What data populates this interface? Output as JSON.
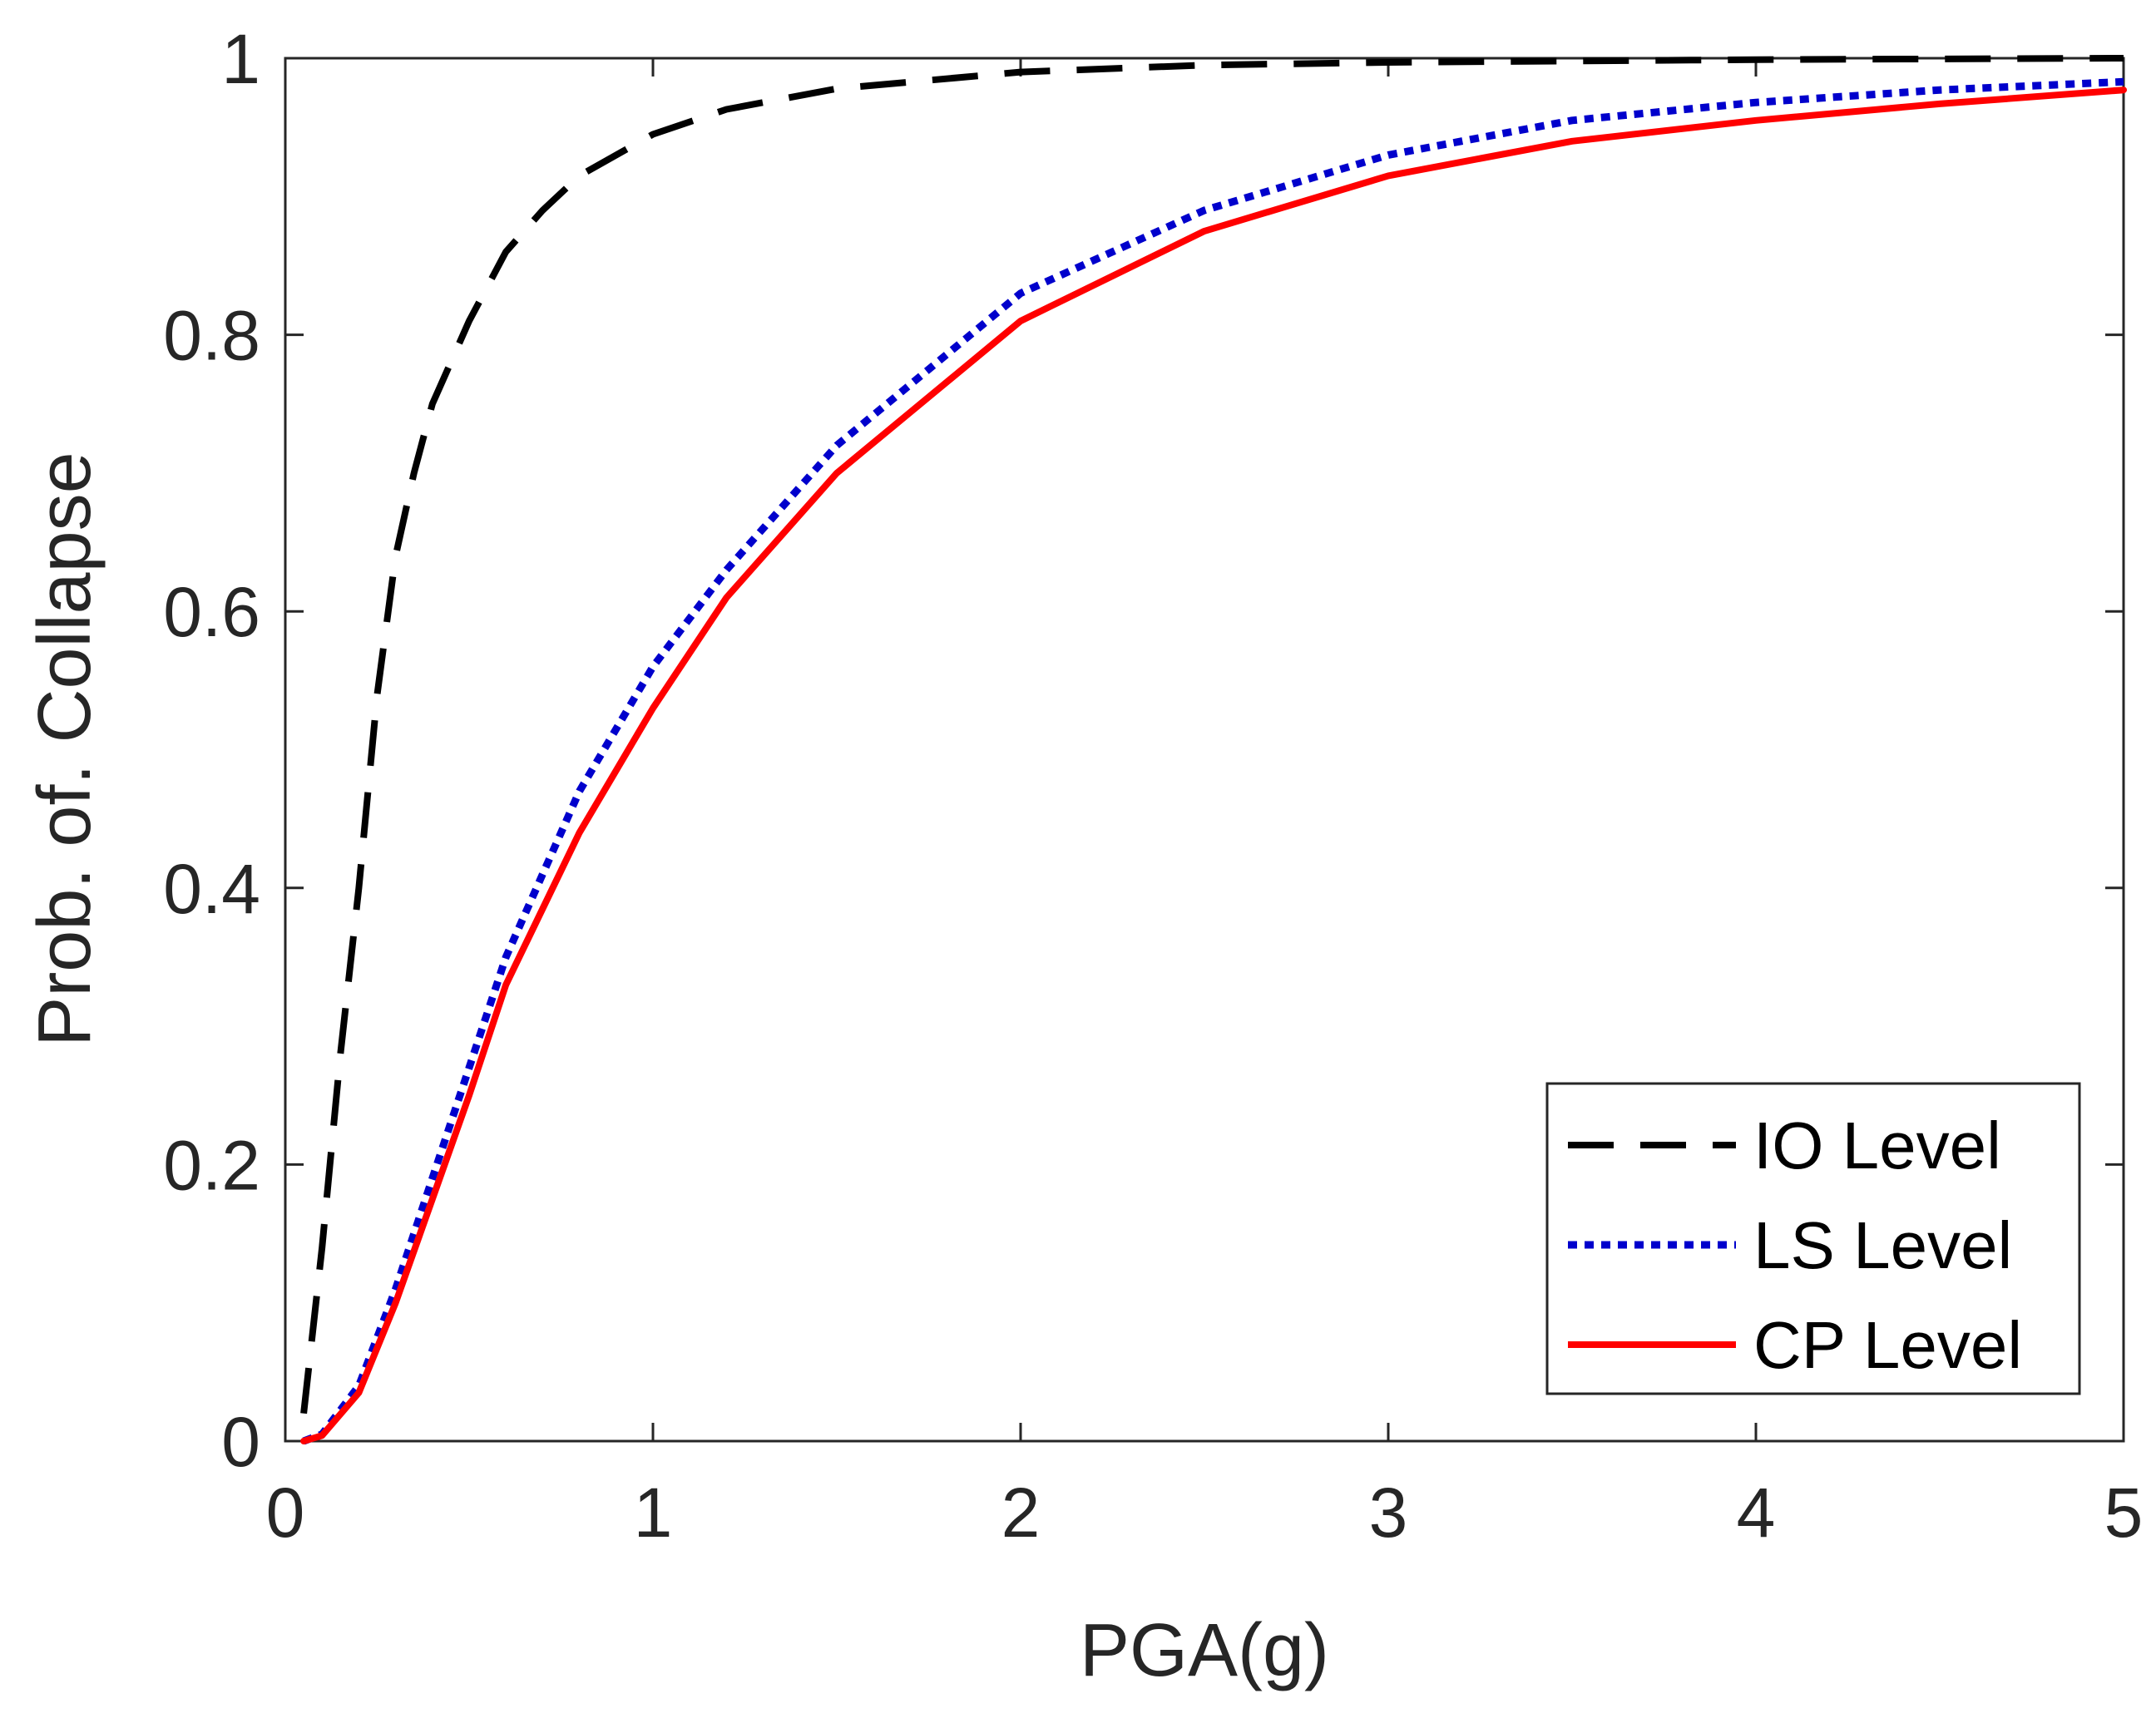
{
  "chart_data": {
    "type": "line",
    "title": "",
    "xlabel": "PGA(g)",
    "ylabel": "Prob. of. Collapse",
    "xlim": [
      0,
      5
    ],
    "ylim": [
      0,
      1
    ],
    "grid": false,
    "legend_position": "bottom-right",
    "xticks": [
      {
        "value": 0,
        "label": "0"
      },
      {
        "value": 1,
        "label": "1"
      },
      {
        "value": 2,
        "label": "2"
      },
      {
        "value": 3,
        "label": "3"
      },
      {
        "value": 4,
        "label": "4"
      },
      {
        "value": 5,
        "label": "5"
      }
    ],
    "yticks": [
      {
        "value": 0,
        "label": "0"
      },
      {
        "value": 0.2,
        "label": "0.2"
      },
      {
        "value": 0.4,
        "label": "0.4"
      },
      {
        "value": 0.6,
        "label": "0.6"
      },
      {
        "value": 0.8,
        "label": "0.8"
      },
      {
        "value": 1,
        "label": "1"
      }
    ],
    "series": [
      {
        "name": "IO Level",
        "color": "#000000",
        "style": "dashed",
        "x": [
          0.05,
          0.1,
          0.15,
          0.2,
          0.25,
          0.3,
          0.35,
          0.4,
          0.5,
          0.6,
          0.7,
          0.8,
          1.0,
          1.2,
          1.5,
          2.0,
          2.5,
          3.0,
          4.0,
          5.0
        ],
        "y": [
          0.02,
          0.14,
          0.28,
          0.4,
          0.54,
          0.64,
          0.7,
          0.75,
          0.81,
          0.86,
          0.89,
          0.915,
          0.945,
          0.963,
          0.978,
          0.99,
          0.995,
          0.997,
          0.999,
          1.0
        ]
      },
      {
        "name": "LS Level",
        "color": "#0000cc",
        "style": "dotted",
        "x": [
          0.05,
          0.1,
          0.2,
          0.3,
          0.4,
          0.5,
          0.6,
          0.8,
          1.0,
          1.2,
          1.5,
          2.0,
          2.5,
          3.0,
          3.5,
          4.0,
          4.5,
          5.0
        ],
        "y": [
          0.0,
          0.005,
          0.04,
          0.11,
          0.19,
          0.27,
          0.35,
          0.47,
          0.56,
          0.63,
          0.72,
          0.83,
          0.89,
          0.93,
          0.955,
          0.968,
          0.977,
          0.983
        ]
      },
      {
        "name": "CP Level",
        "color": "#ff0000",
        "style": "solid",
        "x": [
          0.05,
          0.1,
          0.2,
          0.3,
          0.4,
          0.5,
          0.6,
          0.8,
          1.0,
          1.2,
          1.5,
          2.0,
          2.5,
          3.0,
          3.5,
          4.0,
          4.5,
          5.0
        ],
        "y": [
          0.0,
          0.004,
          0.035,
          0.1,
          0.175,
          0.25,
          0.33,
          0.44,
          0.53,
          0.61,
          0.7,
          0.81,
          0.875,
          0.915,
          0.94,
          0.955,
          0.967,
          0.977
        ]
      }
    ]
  }
}
